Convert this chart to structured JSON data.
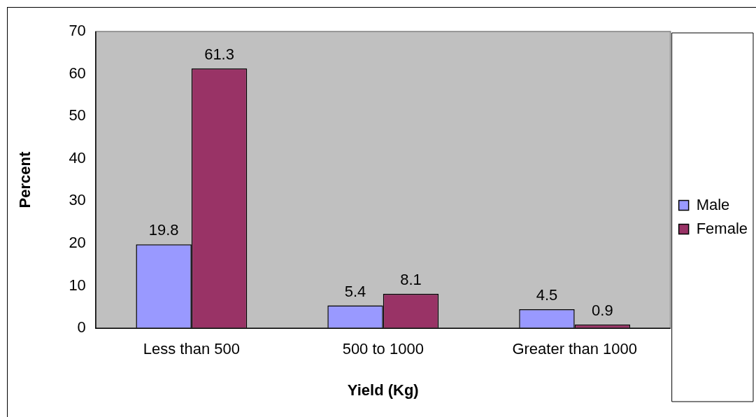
{
  "chart_data": {
    "type": "bar",
    "xlabel": "Yield (Kg)",
    "ylabel": "Percent",
    "categories": [
      "Less than 500",
      "500 to 1000",
      "Greater than 1000"
    ],
    "series": [
      {
        "name": "Male",
        "color": "#9999ff",
        "values": [
          19.8,
          5.4,
          4.5
        ]
      },
      {
        "name": "Female",
        "color": "#993366",
        "values": [
          61.3,
          8.1,
          0.9
        ]
      }
    ],
    "ylim": [
      0,
      70
    ],
    "yticks": [
      0,
      10,
      20,
      30,
      40,
      50,
      60,
      70
    ],
    "grid": false,
    "legend": "right",
    "data_labels": true
  }
}
